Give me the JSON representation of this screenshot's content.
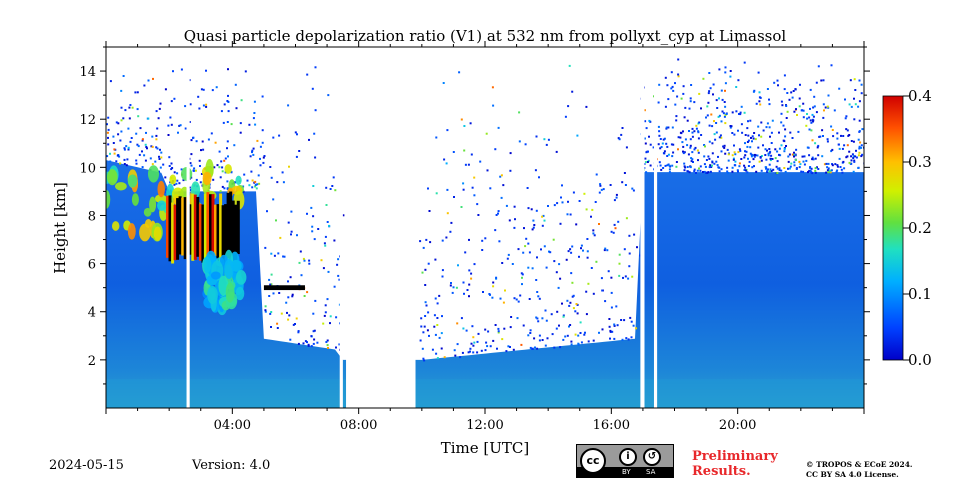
{
  "chart_data": {
    "type": "heatmap",
    "title": "Quasi particle depolarization ratio (V1) at 532 nm from pollyxt_cyp at Limassol",
    "xlabel": "Time [UTC]",
    "ylabel": "Height [km]",
    "xlim_hours": [
      0,
      24
    ],
    "ylim_km": [
      0,
      15
    ],
    "x_ticks": [
      {
        "hour": 4,
        "label": "04:00"
      },
      {
        "hour": 8,
        "label": "08:00"
      },
      {
        "hour": 12,
        "label": "12:00"
      },
      {
        "hour": 16,
        "label": "16:00"
      },
      {
        "hour": 20,
        "label": "20:00"
      }
    ],
    "y_ticks": [
      {
        "km": 2,
        "label": "2"
      },
      {
        "km": 4,
        "label": "4"
      },
      {
        "km": 6,
        "label": "6"
      },
      {
        "km": 8,
        "label": "8"
      },
      {
        "km": 10,
        "label": "10"
      },
      {
        "km": 12,
        "label": "12"
      },
      {
        "km": 14,
        "label": "14"
      }
    ],
    "colorbar": {
      "colormap": "jet",
      "range": [
        0.0,
        0.4
      ],
      "ticks": [
        {
          "value": 0.0,
          "label": "0.0"
        },
        {
          "value": 0.1,
          "label": "0.1"
        },
        {
          "value": 0.2,
          "label": "0.2"
        },
        {
          "value": 0.3,
          "label": "0.3"
        },
        {
          "value": 0.4,
          "label": "0.4"
        }
      ]
    },
    "data_gaps_hours": [
      [
        2.55,
        2.65
      ],
      [
        7.4,
        7.5
      ],
      [
        7.6,
        9.8
      ],
      [
        16.92,
        17.05
      ],
      [
        17.35,
        17.45
      ]
    ],
    "features": [
      {
        "name": "background aerosol / clear air",
        "t_start": 0,
        "t_end": 24,
        "h_bottom": 0,
        "h_top": 10,
        "value": 0.02
      },
      {
        "name": "depolarizing aerosol layer",
        "t_start": 0,
        "t_end": 4.3,
        "h_bottom": 7.2,
        "h_top": 10,
        "value": 0.3
      },
      {
        "name": "cirrus cloud",
        "t_start": 1.9,
        "t_end": 4.2,
        "h_bottom": 6.0,
        "h_top": 9.0,
        "value": 0.4
      },
      {
        "name": "descending dust plume",
        "t_start": 3.2,
        "t_end": 4.3,
        "h_bottom": 4.2,
        "h_top": 6.2,
        "value": 0.18
      },
      {
        "name": "cloud base",
        "t_start": 5.0,
        "t_end": 6.3,
        "h_bottom": 4.9,
        "h_top": 5.1,
        "value": 0.0
      }
    ]
  },
  "footer": {
    "date": "2024-05-15",
    "version": "Version: 4.0",
    "license_badge": {
      "text": "cc",
      "by": "BY",
      "sa": "SA"
    },
    "preliminary": "Preliminary\nResults.",
    "copyright": "© TROPOS & ECoE 2024.\nCC BY SA 4.0 License."
  },
  "colors": {
    "preliminary": "#e8282b",
    "gap": "#ffffff",
    "cloud": "#000000"
  }
}
